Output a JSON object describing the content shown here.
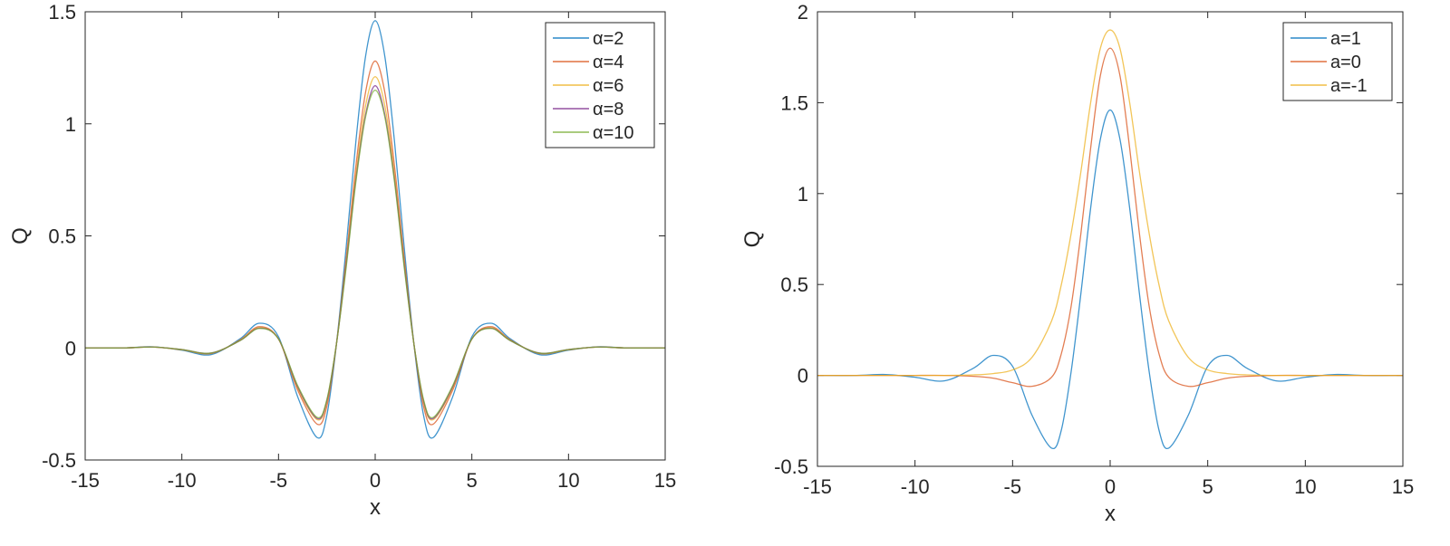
{
  "chart_data": [
    {
      "type": "line",
      "xlabel": "x",
      "ylabel": "Q",
      "x": [
        -15,
        -13,
        -11.5,
        -10,
        -8.5,
        -7,
        -6,
        -5,
        -4,
        -3,
        -2.5,
        -2,
        -1.5,
        -1,
        -0.5,
        0,
        0.5,
        1,
        1.5,
        2,
        2.5,
        3,
        4,
        5,
        6,
        7,
        8.5,
        10,
        11.5,
        13,
        15
      ],
      "xlim": [
        -15,
        15
      ],
      "ylim": [
        -0.5,
        1.5
      ],
      "xticks": [
        -15,
        -10,
        -5,
        0,
        5,
        10,
        15
      ],
      "yticks": [
        -0.5,
        0,
        0.5,
        1,
        1.5
      ],
      "legend": "upper right",
      "series": [
        {
          "name": "α=2",
          "color": "#0072bd",
          "values": [
            0,
            0,
            0.005,
            -0.01,
            -0.03,
            0.04,
            0.11,
            0.05,
            -0.22,
            -0.4,
            -0.3,
            0.02,
            0.45,
            0.92,
            1.3,
            1.46,
            1.3,
            0.92,
            0.45,
            0.02,
            -0.3,
            -0.4,
            -0.22,
            0.05,
            0.11,
            0.04,
            -0.03,
            -0.01,
            0.005,
            0,
            0
          ]
        },
        {
          "name": "α=4",
          "color": "#d95319",
          "values": [
            0,
            0,
            0.004,
            -0.008,
            -0.025,
            0.035,
            0.095,
            0.04,
            -0.19,
            -0.34,
            -0.26,
            0.02,
            0.4,
            0.81,
            1.14,
            1.28,
            1.14,
            0.81,
            0.4,
            0.02,
            -0.26,
            -0.34,
            -0.19,
            0.04,
            0.095,
            0.035,
            -0.025,
            -0.008,
            0.004,
            0,
            0
          ]
        },
        {
          "name": "α=6",
          "color": "#edb120",
          "values": [
            0,
            0,
            0.004,
            -0.008,
            -0.024,
            0.033,
            0.09,
            0.04,
            -0.18,
            -0.32,
            -0.24,
            0.02,
            0.38,
            0.77,
            1.08,
            1.21,
            1.08,
            0.77,
            0.38,
            0.02,
            -0.24,
            -0.32,
            -0.18,
            0.04,
            0.09,
            0.033,
            -0.024,
            -0.008,
            0.004,
            0,
            0
          ]
        },
        {
          "name": "α=8",
          "color": "#7e2f8e",
          "values": [
            0,
            0,
            0.004,
            -0.007,
            -0.023,
            0.032,
            0.088,
            0.04,
            -0.175,
            -0.315,
            -0.235,
            0.02,
            0.37,
            0.75,
            1.04,
            1.17,
            1.04,
            0.75,
            0.37,
            0.02,
            -0.235,
            -0.315,
            -0.175,
            0.04,
            0.088,
            0.032,
            -0.023,
            -0.007,
            0.004,
            0,
            0
          ]
        },
        {
          "name": "α=10",
          "color": "#77ac30",
          "values": [
            0,
            0,
            0.004,
            -0.007,
            -0.023,
            0.032,
            0.087,
            0.04,
            -0.17,
            -0.31,
            -0.23,
            0.02,
            0.36,
            0.74,
            1.03,
            1.15,
            1.03,
            0.74,
            0.36,
            0.02,
            -0.23,
            -0.31,
            -0.17,
            0.04,
            0.087,
            0.032,
            -0.023,
            -0.007,
            0.004,
            0,
            0
          ]
        }
      ]
    },
    {
      "type": "line",
      "xlabel": "x",
      "ylabel": "Q",
      "x": [
        -15,
        -13,
        -11.5,
        -10,
        -8.5,
        -7,
        -6,
        -5,
        -4,
        -3,
        -2.5,
        -2,
        -1.5,
        -1,
        -0.5,
        0,
        0.5,
        1,
        1.5,
        2,
        2.5,
        3,
        4,
        5,
        6,
        7,
        8.5,
        10,
        11.5,
        13,
        15
      ],
      "xlim": [
        -15,
        15
      ],
      "ylim": [
        -0.5,
        2
      ],
      "xticks": [
        -15,
        -10,
        -5,
        0,
        5,
        10,
        15
      ],
      "yticks": [
        -0.5,
        0,
        0.5,
        1,
        1.5,
        2
      ],
      "legend": "upper right",
      "series": [
        {
          "name": "a=1",
          "color": "#0072bd",
          "values": [
            0,
            0,
            0.005,
            -0.01,
            -0.03,
            0.04,
            0.11,
            0.05,
            -0.22,
            -0.4,
            -0.3,
            0.02,
            0.45,
            0.92,
            1.3,
            1.46,
            1.3,
            0.92,
            0.45,
            0.02,
            -0.3,
            -0.4,
            -0.22,
            0.05,
            0.11,
            0.04,
            -0.03,
            -0.01,
            0.005,
            0,
            0
          ]
        },
        {
          "name": "a=0",
          "color": "#d95319",
          "values": [
            0,
            0,
            0,
            0,
            0,
            -0.005,
            -0.015,
            -0.04,
            -0.06,
            -0.01,
            0.12,
            0.38,
            0.78,
            1.25,
            1.65,
            1.8,
            1.65,
            1.25,
            0.78,
            0.38,
            0.12,
            -0.01,
            -0.06,
            -0.04,
            -0.015,
            -0.005,
            0,
            0,
            0,
            0,
            0
          ]
        },
        {
          "name": "a=-1",
          "color": "#edb120",
          "values": [
            0,
            0,
            0,
            0,
            0,
            0.003,
            0.01,
            0.03,
            0.1,
            0.3,
            0.5,
            0.78,
            1.12,
            1.5,
            1.8,
            1.9,
            1.8,
            1.5,
            1.12,
            0.78,
            0.5,
            0.3,
            0.1,
            0.03,
            0.01,
            0.003,
            0,
            0,
            0,
            0,
            0
          ]
        }
      ]
    }
  ]
}
